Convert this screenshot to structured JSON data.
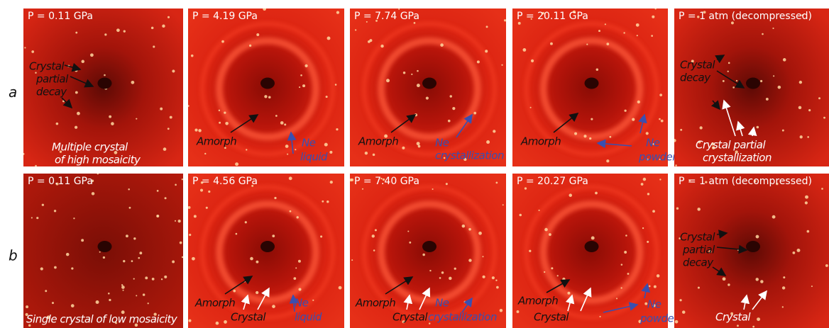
{
  "rows": [
    {
      "label": "a",
      "panels": [
        {
          "pressure": "P = 0.11 GPa",
          "notes": [
            "Crystal",
            "partial",
            "decay",
            "Multiple crystal",
            "of high mosaicity"
          ]
        },
        {
          "pressure": "P = 4.19 GPa",
          "notes": [
            "Amorph",
            "Ne",
            "liquid"
          ]
        },
        {
          "pressure": "P = 7.74 GPa",
          "notes": [
            "Amorph",
            "Ne",
            "crystallization"
          ]
        },
        {
          "pressure": "P = 20.11 GPa",
          "notes": [
            "Amorph",
            "Ne",
            "powder"
          ]
        },
        {
          "pressure": "P = 1 atm (decompressed)",
          "notes": [
            "Crystal",
            "decay",
            "Crystal partial",
            "crystallization"
          ]
        }
      ]
    },
    {
      "label": "b",
      "panels": [
        {
          "pressure": "P = 0.11 GPa",
          "notes": [
            "Single crystal of low mosaicity"
          ]
        },
        {
          "pressure": "P = 4.56 GPa",
          "notes": [
            "Amorph",
            "Crystal",
            "Ne",
            "liquid"
          ]
        },
        {
          "pressure": "P = 7.40 GPa",
          "notes": [
            "Amorph",
            "Crystal",
            "Ne",
            "crystallization"
          ]
        },
        {
          "pressure": "P = 20.27 GPa",
          "notes": [
            "Amorph",
            "Crystal",
            "Ne",
            "powder"
          ]
        },
        {
          "pressure": "P = 1 atm (decompressed)",
          "notes": [
            "Crystal",
            "partial",
            "decay",
            "Crystal"
          ]
        }
      ]
    }
  ]
}
